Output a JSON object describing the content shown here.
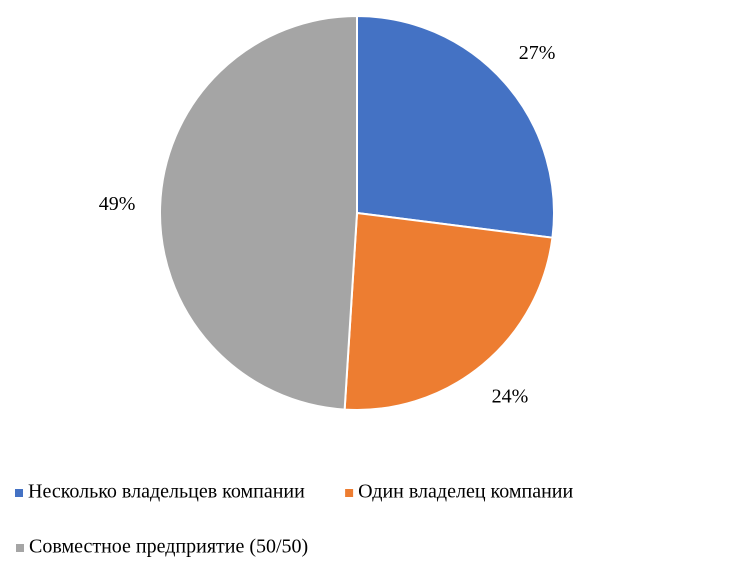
{
  "chart_data": {
    "type": "pie",
    "categories": [
      "Несколько владельцев компании",
      "Один владелец компании",
      "Совместное предприятие (50/50)"
    ],
    "values": [
      27,
      24,
      49
    ],
    "value_labels": [
      "27%",
      "24%",
      "49%"
    ],
    "colors": [
      "#4472c4",
      "#ed7d31",
      "#a5a5a5"
    ],
    "legend": "bottom"
  }
}
